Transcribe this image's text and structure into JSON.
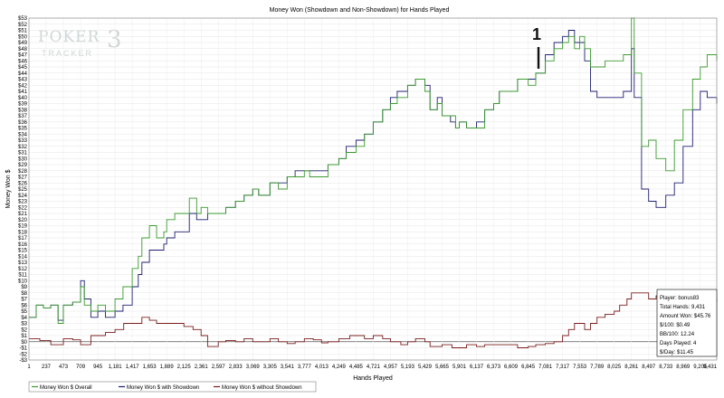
{
  "chart_data": {
    "type": "line",
    "title": "Money Won (Showdown and Non-Showdown) for Hands Played",
    "xlabel": "Hands Played",
    "ylabel": "Money Won $",
    "xlim": [
      1,
      9431
    ],
    "ylim": [
      -3,
      53
    ],
    "grid": true,
    "legend_position": "bottom-left",
    "x_ticks": [
      "1",
      "237",
      "473",
      "709",
      "945",
      "1,181",
      "1,417",
      "1,653",
      "1,889",
      "2,125",
      "2,361",
      "2,597",
      "2,833",
      "3,069",
      "3,305",
      "3,541",
      "3,777",
      "4,013",
      "4,249",
      "4,485",
      "4,721",
      "4,957",
      "5,193",
      "5,429",
      "5,665",
      "5,901",
      "6,137",
      "6,373",
      "6,609",
      "6,845",
      "7,081",
      "7,317",
      "7,553",
      "7,789",
      "8,025",
      "8,261",
      "8,497",
      "8,733",
      "8,969",
      "9,205",
      "9,431"
    ],
    "y_ticks": [
      -3,
      -2,
      -1,
      0,
      1,
      2,
      3,
      4,
      5,
      6,
      7,
      8,
      9,
      10,
      11,
      12,
      13,
      14,
      15,
      16,
      17,
      18,
      19,
      20,
      21,
      22,
      23,
      24,
      25,
      26,
      27,
      28,
      29,
      30,
      31,
      32,
      33,
      34,
      35,
      36,
      37,
      38,
      39,
      40,
      41,
      42,
      43,
      44,
      45,
      46,
      47,
      48,
      49,
      50,
      51,
      52,
      53
    ],
    "series": [
      {
        "name": "Money Won $ Overall",
        "color": "#3a9a2e",
        "points": [
          [
            1,
            4
          ],
          [
            100,
            6
          ],
          [
            200,
            5.5
          ],
          [
            300,
            6
          ],
          [
            400,
            3
          ],
          [
            473,
            6
          ],
          [
            600,
            6.5
          ],
          [
            709,
            9
          ],
          [
            760,
            6
          ],
          [
            850,
            5
          ],
          [
            945,
            6
          ],
          [
            1050,
            5
          ],
          [
            1181,
            7
          ],
          [
            1290,
            9
          ],
          [
            1417,
            12
          ],
          [
            1500,
            14
          ],
          [
            1550,
            17
          ],
          [
            1653,
            19
          ],
          [
            1750,
            17
          ],
          [
            1850,
            18
          ],
          [
            1889,
            20
          ],
          [
            2000,
            21
          ],
          [
            2125,
            21
          ],
          [
            2200,
            23.5
          ],
          [
            2300,
            21
          ],
          [
            2361,
            22
          ],
          [
            2450,
            21
          ],
          [
            2597,
            21
          ],
          [
            2700,
            22
          ],
          [
            2833,
            23
          ],
          [
            2950,
            24
          ],
          [
            3069,
            25
          ],
          [
            3150,
            24
          ],
          [
            3305,
            26
          ],
          [
            3420,
            25
          ],
          [
            3541,
            27
          ],
          [
            3650,
            27
          ],
          [
            3777,
            28
          ],
          [
            3850,
            27
          ],
          [
            4013,
            27
          ],
          [
            4100,
            29
          ],
          [
            4249,
            30
          ],
          [
            4350,
            31
          ],
          [
            4485,
            32
          ],
          [
            4600,
            34
          ],
          [
            4721,
            36
          ],
          [
            4850,
            38
          ],
          [
            4957,
            39
          ],
          [
            5050,
            40
          ],
          [
            5193,
            42
          ],
          [
            5300,
            43
          ],
          [
            5429,
            41
          ],
          [
            5500,
            38
          ],
          [
            5600,
            39
          ],
          [
            5665,
            37
          ],
          [
            5780,
            37
          ],
          [
            5850,
            35
          ],
          [
            5901,
            36
          ],
          [
            6000,
            35
          ],
          [
            6137,
            35
          ],
          [
            6250,
            38
          ],
          [
            6373,
            39
          ],
          [
            6450,
            41
          ],
          [
            6609,
            41
          ],
          [
            6700,
            43
          ],
          [
            6845,
            42
          ],
          [
            6950,
            44
          ],
          [
            7081,
            46
          ],
          [
            7200,
            48
          ],
          [
            7317,
            49
          ],
          [
            7400,
            50
          ],
          [
            7480,
            48
          ],
          [
            7553,
            50
          ],
          [
            7620,
            48
          ],
          [
            7700,
            45
          ],
          [
            7789,
            45
          ],
          [
            7900,
            46
          ],
          [
            8025,
            46
          ],
          [
            8150,
            47
          ],
          [
            8261,
            53
          ],
          [
            8300,
            44
          ],
          [
            8400,
            32
          ],
          [
            8497,
            33
          ],
          [
            8600,
            30
          ],
          [
            8733,
            28
          ],
          [
            8850,
            33
          ],
          [
            8969,
            38
          ],
          [
            9100,
            43
          ],
          [
            9205,
            45
          ],
          [
            9300,
            47
          ],
          [
            9431,
            46
          ]
        ]
      },
      {
        "name": "Money Won $ with Showdown",
        "color": "#1e1e72",
        "points": [
          [
            1,
            4
          ],
          [
            100,
            6
          ],
          [
            200,
            5.5
          ],
          [
            300,
            6
          ],
          [
            400,
            3.5
          ],
          [
            473,
            6
          ],
          [
            600,
            6.5
          ],
          [
            709,
            10
          ],
          [
            760,
            7
          ],
          [
            850,
            4
          ],
          [
            945,
            5
          ],
          [
            1050,
            4
          ],
          [
            1181,
            5
          ],
          [
            1290,
            6
          ],
          [
            1417,
            9
          ],
          [
            1500,
            11
          ],
          [
            1550,
            13
          ],
          [
            1653,
            15
          ],
          [
            1750,
            15
          ],
          [
            1850,
            16
          ],
          [
            1889,
            17
          ],
          [
            2000,
            18
          ],
          [
            2125,
            18
          ],
          [
            2200,
            21
          ],
          [
            2300,
            20
          ],
          [
            2361,
            20
          ],
          [
            2450,
            21
          ],
          [
            2597,
            21
          ],
          [
            2700,
            22
          ],
          [
            2833,
            23
          ],
          [
            2950,
            24
          ],
          [
            3069,
            25
          ],
          [
            3150,
            24
          ],
          [
            3305,
            26
          ],
          [
            3420,
            26
          ],
          [
            3541,
            27
          ],
          [
            3650,
            28
          ],
          [
            3777,
            28
          ],
          [
            3850,
            28
          ],
          [
            4013,
            28
          ],
          [
            4100,
            29
          ],
          [
            4249,
            30
          ],
          [
            4350,
            32
          ],
          [
            4485,
            33
          ],
          [
            4600,
            34
          ],
          [
            4721,
            36
          ],
          [
            4850,
            38
          ],
          [
            4957,
            40
          ],
          [
            5050,
            41
          ],
          [
            5193,
            42
          ],
          [
            5300,
            43
          ],
          [
            5429,
            42
          ],
          [
            5500,
            38
          ],
          [
            5600,
            40
          ],
          [
            5665,
            37
          ],
          [
            5780,
            36
          ],
          [
            5850,
            35
          ],
          [
            5901,
            36
          ],
          [
            6000,
            35
          ],
          [
            6137,
            36
          ],
          [
            6250,
            38
          ],
          [
            6373,
            39
          ],
          [
            6450,
            41
          ],
          [
            6609,
            41
          ],
          [
            6700,
            43
          ],
          [
            6845,
            43
          ],
          [
            6950,
            44
          ],
          [
            7081,
            47
          ],
          [
            7200,
            49
          ],
          [
            7317,
            50
          ],
          [
            7400,
            51
          ],
          [
            7480,
            49
          ],
          [
            7553,
            49
          ],
          [
            7620,
            46
          ],
          [
            7700,
            41
          ],
          [
            7789,
            40
          ],
          [
            7900,
            40
          ],
          [
            8025,
            40
          ],
          [
            8150,
            41
          ],
          [
            8261,
            48
          ],
          [
            8300,
            40
          ],
          [
            8400,
            25
          ],
          [
            8497,
            23
          ],
          [
            8600,
            22
          ],
          [
            8733,
            24
          ],
          [
            8850,
            26
          ],
          [
            8969,
            32
          ],
          [
            9100,
            38
          ],
          [
            9205,
            41
          ],
          [
            9300,
            40
          ],
          [
            9431,
            39
          ]
        ]
      },
      {
        "name": "Money Won $ without Showdown",
        "color": "#7a1c1c",
        "points": [
          [
            1,
            0.5
          ],
          [
            150,
            0.2
          ],
          [
            300,
            -0.5
          ],
          [
            473,
            0.5
          ],
          [
            600,
            0.3
          ],
          [
            709,
            -0.5
          ],
          [
            850,
            1
          ],
          [
            945,
            1
          ],
          [
            1050,
            1.5
          ],
          [
            1181,
            2
          ],
          [
            1300,
            3
          ],
          [
            1417,
            3
          ],
          [
            1550,
            4
          ],
          [
            1653,
            3.5
          ],
          [
            1750,
            3
          ],
          [
            1889,
            3
          ],
          [
            2000,
            3
          ],
          [
            2125,
            2.5
          ],
          [
            2250,
            2
          ],
          [
            2361,
            1
          ],
          [
            2450,
            -0.8
          ],
          [
            2597,
            0
          ],
          [
            2700,
            0.2
          ],
          [
            2833,
            0
          ],
          [
            2950,
            0.5
          ],
          [
            3069,
            0
          ],
          [
            3200,
            0
          ],
          [
            3305,
            0.5
          ],
          [
            3420,
            0
          ],
          [
            3541,
            -0.3
          ],
          [
            3650,
            0
          ],
          [
            3777,
            0.5
          ],
          [
            3900,
            0.3
          ],
          [
            4013,
            -0.2
          ],
          [
            4100,
            0
          ],
          [
            4249,
            0.5
          ],
          [
            4400,
            1
          ],
          [
            4485,
            1
          ],
          [
            4600,
            0.5
          ],
          [
            4721,
            1
          ],
          [
            4850,
            0.5
          ],
          [
            4957,
            0
          ],
          [
            5100,
            -0.5
          ],
          [
            5193,
            0
          ],
          [
            5300,
            0.5
          ],
          [
            5429,
            0
          ],
          [
            5500,
            -0.8
          ],
          [
            5665,
            -0.5
          ],
          [
            5800,
            -1
          ],
          [
            5901,
            -1
          ],
          [
            6000,
            -0.5
          ],
          [
            6137,
            -0.8
          ],
          [
            6250,
            -0.5
          ],
          [
            6373,
            -0.5
          ],
          [
            6500,
            -0.5
          ],
          [
            6609,
            -0.5
          ],
          [
            6700,
            -1
          ],
          [
            6845,
            -0.8
          ],
          [
            6950,
            -0.5
          ],
          [
            7081,
            -0.3
          ],
          [
            7200,
            0
          ],
          [
            7317,
            1
          ],
          [
            7400,
            2
          ],
          [
            7480,
            3
          ],
          [
            7553,
            3
          ],
          [
            7620,
            2
          ],
          [
            7700,
            3
          ],
          [
            7789,
            4
          ],
          [
            7900,
            4.5
          ],
          [
            8025,
            5
          ],
          [
            8100,
            6
          ],
          [
            8200,
            7
          ],
          [
            8261,
            8
          ],
          [
            8350,
            8
          ],
          [
            8497,
            7
          ],
          [
            8600,
            7.5
          ],
          [
            8733,
            6
          ],
          [
            8850,
            6
          ],
          [
            8969,
            7
          ],
          [
            9100,
            7
          ],
          [
            9205,
            6.5
          ],
          [
            9300,
            6.5
          ],
          [
            9431,
            7
          ]
        ]
      }
    ],
    "stats_box": [
      "Player: bonus83",
      "Total Hands: 9,431",
      "Amount Won: $45.76",
      "$/100: $0.49",
      "BB/100: 12.24",
      "Days Played: 4",
      "$/Day: $11.45"
    ],
    "annotation": "1"
  },
  "watermark": {
    "line1": "POKER",
    "line2": "TRACKER",
    "suffix": "3"
  }
}
